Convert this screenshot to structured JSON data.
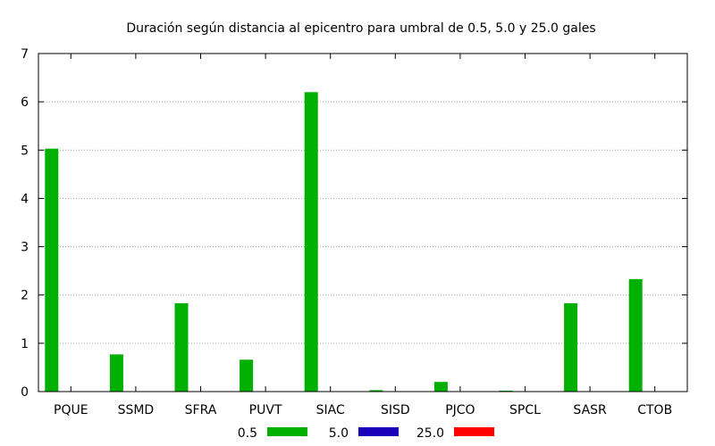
{
  "chart_data": {
    "type": "bar",
    "title": "Duración según distancia al epicentro para umbral de 0.5, 5.0 y 25.0 gales",
    "xlabel": "",
    "ylabel": "",
    "categories": [
      "PQUE",
      "SSMD",
      "SFRA",
      "PUVT",
      "SIAC",
      "SISD",
      "PJCO",
      "SPCL",
      "SASR",
      "CTOB"
    ],
    "series": [
      {
        "name": "0.5",
        "color": "#00b000",
        "values": [
          5.03,
          0.77,
          1.83,
          0.66,
          6.2,
          0.03,
          0.2,
          0.02,
          1.83,
          2.33
        ]
      },
      {
        "name": "5.0",
        "color": "#1a00b8",
        "values": [
          0,
          0,
          0,
          0,
          0,
          0,
          0,
          0,
          0,
          0
        ]
      },
      {
        "name": "25.0",
        "color": "#ff0000",
        "values": [
          0,
          0,
          0,
          0,
          0,
          0,
          0,
          0,
          0,
          0
        ]
      }
    ],
    "yticks": [
      "0",
      "1",
      "2",
      "3",
      "4",
      "5",
      "6",
      "7"
    ],
    "ylim": [
      0,
      7
    ],
    "grid": true,
    "legend_position": "bottom"
  }
}
